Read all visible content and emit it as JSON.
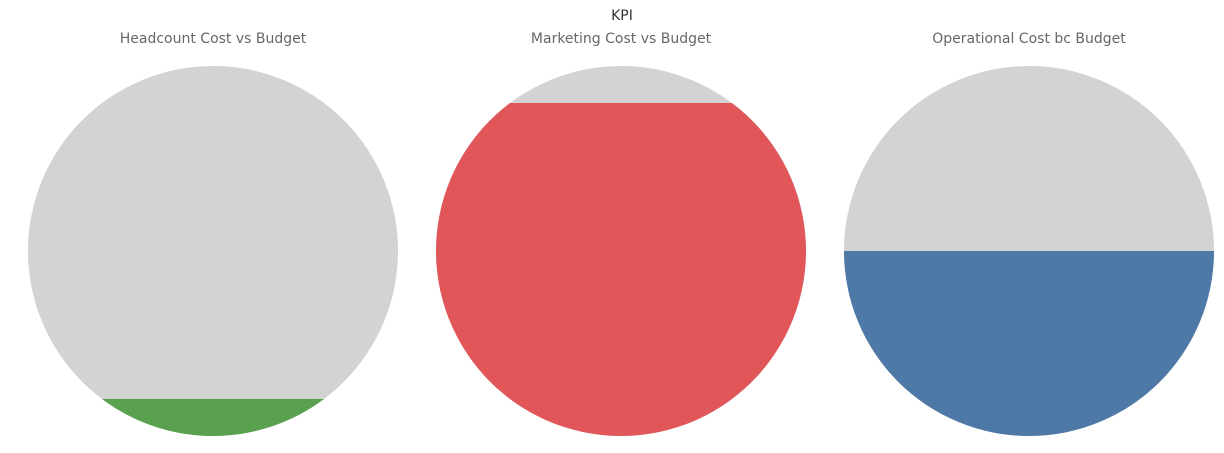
{
  "title": "KPI",
  "colors": {
    "remaining": "#d3d3d3"
  },
  "chart_data": [
    {
      "type": "area",
      "title": "Headcount Cost vs Budget",
      "fill_fraction": 0.1,
      "fill_color": "#59a14f"
    },
    {
      "type": "area",
      "title": "Marketing Cost vs Budget",
      "fill_fraction": 0.9,
      "fill_color": "#e15759"
    },
    {
      "type": "area",
      "title": "Operational Cost bc Budget",
      "fill_fraction": 0.5,
      "fill_color": "#4e79a7"
    }
  ]
}
